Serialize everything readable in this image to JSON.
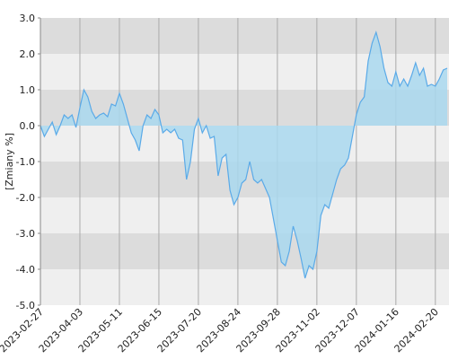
{
  "chart_data": {
    "type": "area",
    "y_label": "[Zmiany %]",
    "categories": [
      "2023-02-27",
      null,
      null,
      null,
      null,
      null,
      null,
      null,
      null,
      null,
      "2023-04-03",
      null,
      null,
      null,
      null,
      null,
      null,
      null,
      null,
      null,
      "2023-05-11",
      null,
      null,
      null,
      null,
      null,
      null,
      null,
      null,
      null,
      "2023-06-15",
      null,
      null,
      null,
      null,
      null,
      null,
      null,
      null,
      null,
      "2023-07-20",
      null,
      null,
      null,
      null,
      null,
      null,
      null,
      null,
      null,
      "2023-08-24",
      null,
      null,
      null,
      null,
      null,
      null,
      null,
      null,
      null,
      "2023-09-28",
      null,
      null,
      null,
      null,
      null,
      null,
      null,
      null,
      null,
      "2023-11-02",
      null,
      null,
      null,
      null,
      null,
      null,
      null,
      null,
      null,
      "2023-12-07",
      null,
      null,
      null,
      null,
      null,
      null,
      null,
      null,
      null,
      "2024-01-16",
      null,
      null,
      null,
      null,
      null,
      null,
      null,
      null,
      null,
      "2024-02-20",
      null,
      null,
      null
    ],
    "values": [
      0.0,
      -0.3,
      -0.1,
      0.1,
      -0.25,
      0.0,
      0.3,
      0.2,
      0.3,
      -0.05,
      0.5,
      1.0,
      0.8,
      0.4,
      0.2,
      0.3,
      0.35,
      0.25,
      0.6,
      0.55,
      0.9,
      0.6,
      0.2,
      -0.2,
      -0.4,
      -0.7,
      0.0,
      0.3,
      0.2,
      0.45,
      0.3,
      -0.2,
      -0.1,
      -0.2,
      -0.1,
      -0.35,
      -0.4,
      -1.5,
      -1.0,
      -0.1,
      0.2,
      -0.2,
      0.0,
      -0.35,
      -0.3,
      -1.4,
      -0.9,
      -0.8,
      -1.8,
      -2.2,
      -2.0,
      -1.6,
      -1.5,
      -1.0,
      -1.5,
      -1.6,
      -1.5,
      -1.75,
      -2.0,
      -2.6,
      -3.2,
      -3.8,
      -3.9,
      -3.5,
      -2.8,
      -3.2,
      -3.7,
      -4.25,
      -3.9,
      -4.0,
      -3.5,
      -2.5,
      -2.2,
      -2.3,
      -1.9,
      -1.5,
      -1.2,
      -1.1,
      -0.9,
      -0.3,
      0.3,
      0.65,
      0.8,
      1.8,
      2.3,
      2.6,
      2.2,
      1.6,
      1.2,
      1.1,
      1.5,
      1.1,
      1.3,
      1.1,
      1.4,
      1.75,
      1.4,
      1.6,
      1.1,
      1.15,
      1.1,
      1.3,
      1.55,
      1.6
    ],
    "color": "#5aaae8",
    "fill": "#a9d8ee",
    "band_colors": [
      "#dcdcdc",
      "#efefef"
    ],
    "ylim": [
      -5,
      3
    ],
    "yticks": [
      {
        "value": 3,
        "label": "3.0"
      },
      {
        "value": 2,
        "label": "2.0"
      },
      {
        "value": 1,
        "label": "1.0"
      },
      {
        "value": 0,
        "label": "0.0"
      },
      {
        "value": -1,
        "label": "-1.0"
      },
      {
        "value": -2,
        "label": "-2.0"
      },
      {
        "value": -3,
        "label": "-3.0"
      },
      {
        "value": -4,
        "label": "-4.0"
      },
      {
        "value": -5,
        "label": "-5.0"
      }
    ],
    "grid": true
  }
}
